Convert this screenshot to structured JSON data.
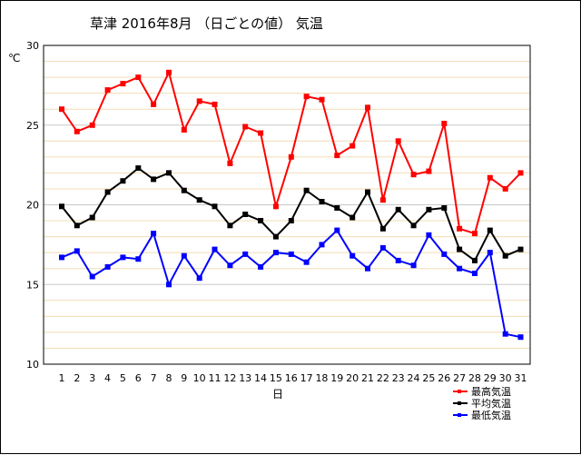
{
  "chart_data": {
    "type": "line",
    "title": "草津  2016年8月  （日ごとの値）  気温",
    "xlabel": "日",
    "ylabel": "℃",
    "ylim": [
      10,
      30
    ],
    "yticks": [
      "10",
      "15",
      "20",
      "25",
      "30"
    ],
    "categories": [
      "1",
      "2",
      "3",
      "4",
      "5",
      "6",
      "7",
      "8",
      "9",
      "10",
      "11",
      "12",
      "13",
      "14",
      "15",
      "16",
      "17",
      "18",
      "19",
      "20",
      "21",
      "22",
      "23",
      "24",
      "25",
      "26",
      "27",
      "28",
      "29",
      "30",
      "31"
    ],
    "grid": true,
    "legend_position": "bottom-right",
    "series": [
      {
        "name": "最高気温",
        "color": "#ff0000",
        "values": [
          26.0,
          24.6,
          25.0,
          27.2,
          27.6,
          28.0,
          26.3,
          28.3,
          24.7,
          26.5,
          26.3,
          22.6,
          24.9,
          24.5,
          19.9,
          23.0,
          26.8,
          26.6,
          23.1,
          23.7,
          26.1,
          20.3,
          24.0,
          21.9,
          22.1,
          25.1,
          18.5,
          18.2,
          21.7,
          21.0,
          22.0
        ]
      },
      {
        "name": "平均気温",
        "color": "#000000",
        "values": [
          19.9,
          18.7,
          19.2,
          20.8,
          21.5,
          22.3,
          21.6,
          22.0,
          20.9,
          20.3,
          19.9,
          18.7,
          19.4,
          19.0,
          18.0,
          19.0,
          20.9,
          20.2,
          19.8,
          19.2,
          20.8,
          18.5,
          19.7,
          18.7,
          19.7,
          19.8,
          17.2,
          16.5,
          18.4,
          16.8,
          17.2
        ]
      },
      {
        "name": "最低気温",
        "color": "#0000ff",
        "values": [
          16.7,
          17.1,
          15.5,
          16.1,
          16.7,
          16.6,
          18.2,
          15.0,
          16.8,
          15.4,
          17.2,
          16.2,
          16.9,
          16.1,
          17.0,
          16.9,
          16.4,
          17.5,
          18.4,
          16.8,
          16.0,
          17.3,
          16.5,
          16.2,
          18.1,
          16.9,
          16.0,
          15.7,
          17.0,
          11.9,
          11.7
        ]
      }
    ]
  }
}
